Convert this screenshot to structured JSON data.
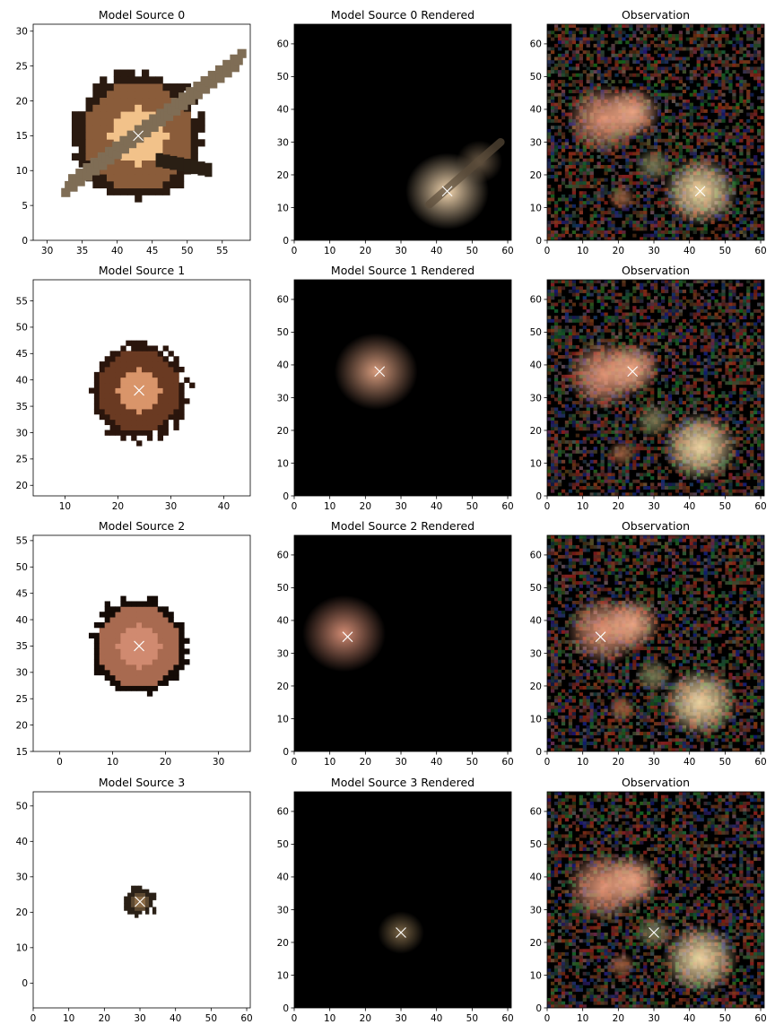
{
  "chart_data": [
    {
      "type": "image",
      "title": "Model Source 0",
      "xlim": [
        28,
        59
      ],
      "ylim": [
        0,
        31
      ],
      "xticks": [
        30,
        35,
        40,
        45,
        50,
        55
      ],
      "yticks": [
        0,
        5,
        10,
        15,
        20,
        25,
        30
      ],
      "background": "white",
      "source": {
        "x": 43,
        "y": 15,
        "core": "#f2c28a",
        "halo": "#8a5c3a",
        "edge": "#2a1a10",
        "disk": "#7f6d55"
      },
      "marker": {
        "x": 43,
        "y": 15
      }
    },
    {
      "type": "image",
      "title": "Model Source 0 Rendered",
      "xlim": [
        0,
        61
      ],
      "ylim": [
        0,
        66
      ],
      "xticks": [
        0,
        10,
        20,
        30,
        40,
        50,
        60
      ],
      "yticks": [
        0,
        10,
        20,
        30,
        40,
        50,
        60
      ],
      "background": "black",
      "blobs": [
        {
          "x": 43,
          "y": 15,
          "r": 9,
          "color": "#f4d7b0"
        },
        {
          "x": 52,
          "y": 24,
          "r": 5,
          "color": "#6b5a46"
        }
      ],
      "marker": {
        "x": 43,
        "y": 15
      }
    },
    {
      "type": "image",
      "title": "Observation",
      "xlim": [
        0,
        61
      ],
      "ylim": [
        0,
        66
      ],
      "xticks": [
        0,
        10,
        20,
        30,
        40,
        50,
        60
      ],
      "yticks": [
        0,
        10,
        20,
        30,
        40,
        50,
        60
      ],
      "background": "noise",
      "marker": {
        "x": 43,
        "y": 15
      }
    },
    {
      "type": "image",
      "title": "Model Source 1",
      "xlim": [
        4,
        45
      ],
      "ylim": [
        18,
        59
      ],
      "xticks": [
        10,
        20,
        30,
        40
      ],
      "yticks": [
        20,
        25,
        30,
        35,
        40,
        45,
        50,
        55
      ],
      "background": "white",
      "source": {
        "x": 24,
        "y": 38,
        "core": "#d9956a",
        "halo": "#6a3a22",
        "edge": "#2a150c"
      },
      "marker": {
        "x": 24,
        "y": 38
      }
    },
    {
      "type": "image",
      "title": "Model Source 1 Rendered",
      "xlim": [
        0,
        61
      ],
      "ylim": [
        0,
        66
      ],
      "xticks": [
        0,
        10,
        20,
        30,
        40,
        50,
        60
      ],
      "yticks": [
        0,
        10,
        20,
        30,
        40,
        50,
        60
      ],
      "background": "black",
      "blobs": [
        {
          "x": 23,
          "y": 38,
          "r": 9,
          "color": "#d59a7c"
        }
      ],
      "marker": {
        "x": 24,
        "y": 38
      }
    },
    {
      "type": "image",
      "title": "Observation",
      "xlim": [
        0,
        61
      ],
      "ylim": [
        0,
        66
      ],
      "xticks": [
        0,
        10,
        20,
        30,
        40,
        50,
        60
      ],
      "yticks": [
        0,
        10,
        20,
        30,
        40,
        50,
        60
      ],
      "background": "noise",
      "marker": {
        "x": 24,
        "y": 38
      }
    },
    {
      "type": "image",
      "title": "Model Source 2",
      "xlim": [
        -5,
        36
      ],
      "ylim": [
        15,
        56
      ],
      "xticks": [
        0,
        10,
        20,
        30
      ],
      "yticks": [
        15,
        20,
        25,
        30,
        35,
        40,
        45,
        50,
        55
      ],
      "background": "white",
      "source": {
        "x": 15,
        "y": 35,
        "core": "#d08a70",
        "halo": "#a86a50",
        "edge": "#150b06"
      },
      "marker": {
        "x": 15,
        "y": 35
      }
    },
    {
      "type": "image",
      "title": "Model Source 2 Rendered",
      "xlim": [
        0,
        61
      ],
      "ylim": [
        0,
        66
      ],
      "xticks": [
        0,
        10,
        20,
        30,
        40,
        50,
        60
      ],
      "yticks": [
        0,
        10,
        20,
        30,
        40,
        50,
        60
      ],
      "background": "black",
      "blobs": [
        {
          "x": 14,
          "y": 36,
          "r": 9,
          "color": "#d08a72"
        }
      ],
      "marker": {
        "x": 15,
        "y": 35
      }
    },
    {
      "type": "image",
      "title": "Observation",
      "xlim": [
        0,
        61
      ],
      "ylim": [
        0,
        66
      ],
      "xticks": [
        0,
        10,
        20,
        30,
        40,
        50,
        60
      ],
      "yticks": [
        0,
        10,
        20,
        30,
        40,
        50,
        60
      ],
      "background": "noise",
      "marker": {
        "x": 15,
        "y": 35
      }
    },
    {
      "type": "image",
      "title": "Model Source 3",
      "xlim": [
        0,
        61
      ],
      "ylim": [
        -7,
        54
      ],
      "xticks": [
        0,
        10,
        20,
        30,
        40,
        50,
        60
      ],
      "yticks": [
        0,
        10,
        20,
        30,
        40,
        50
      ],
      "background": "white",
      "source": {
        "x": 30,
        "y": 23,
        "core": "#8a6a45",
        "halo": "#5e4a32",
        "edge": "#2a2016"
      },
      "marker": {
        "x": 30,
        "y": 23
      }
    },
    {
      "type": "image",
      "title": "Model Source 3 Rendered",
      "xlim": [
        0,
        61
      ],
      "ylim": [
        0,
        66
      ],
      "xticks": [
        0,
        10,
        20,
        30,
        40,
        50,
        60
      ],
      "yticks": [
        0,
        10,
        20,
        30,
        40,
        50,
        60
      ],
      "background": "black",
      "blobs": [
        {
          "x": 30,
          "y": 23,
          "r": 5,
          "color": "#7a6546"
        }
      ],
      "marker": {
        "x": 30,
        "y": 23
      }
    },
    {
      "type": "image",
      "title": "Observation",
      "xlim": [
        0,
        61
      ],
      "ylim": [
        0,
        66
      ],
      "xticks": [
        0,
        10,
        20,
        30,
        40,
        50,
        60
      ],
      "yticks": [
        0,
        10,
        20,
        30,
        40,
        50,
        60
      ],
      "background": "noise",
      "marker": {
        "x": 30,
        "y": 23
      }
    }
  ],
  "observation_sources": [
    {
      "x": 16,
      "y": 37,
      "r": 8,
      "color": "#e89a7a"
    },
    {
      "x": 24,
      "y": 39,
      "r": 6,
      "color": "#f0a886"
    },
    {
      "x": 43,
      "y": 15,
      "r": 8,
      "color": "#f8dca8"
    },
    {
      "x": 30,
      "y": 23,
      "r": 4,
      "color": "#7a7a55"
    },
    {
      "x": 21,
      "y": 13,
      "r": 3,
      "color": "#9a6040"
    }
  ]
}
